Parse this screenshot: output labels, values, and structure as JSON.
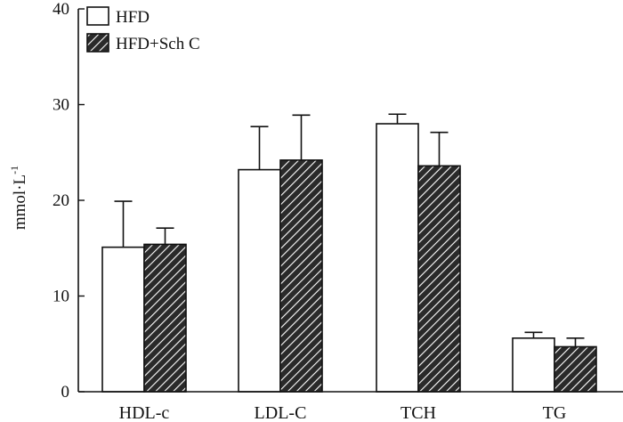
{
  "chart_data": {
    "type": "bar",
    "title": "",
    "xlabel": "",
    "ylabel": "mmol·L",
    "ylabel_superscript": "-1",
    "ylim": [
      0,
      40
    ],
    "yticks": [
      "0",
      "10",
      "20",
      "30",
      "40"
    ],
    "categories": [
      "HDL-c",
      "LDL-C",
      "TCH",
      "TG"
    ],
    "series": [
      {
        "name": "HFD",
        "values": [
          15.1,
          23.2,
          28.0,
          5.6
        ],
        "errors": [
          4.8,
          4.5,
          1.0,
          0.6
        ],
        "fill": "#ffffff",
        "pattern": "none"
      },
      {
        "name": "HFD+Sch C",
        "values": [
          15.4,
          24.2,
          23.6,
          4.7
        ],
        "errors": [
          1.7,
          4.7,
          3.5,
          0.9
        ],
        "fill": "#2a2a2a",
        "pattern": "hatch"
      }
    ],
    "legend_position": "top-left",
    "grid": false,
    "axis_color": "#111111"
  }
}
